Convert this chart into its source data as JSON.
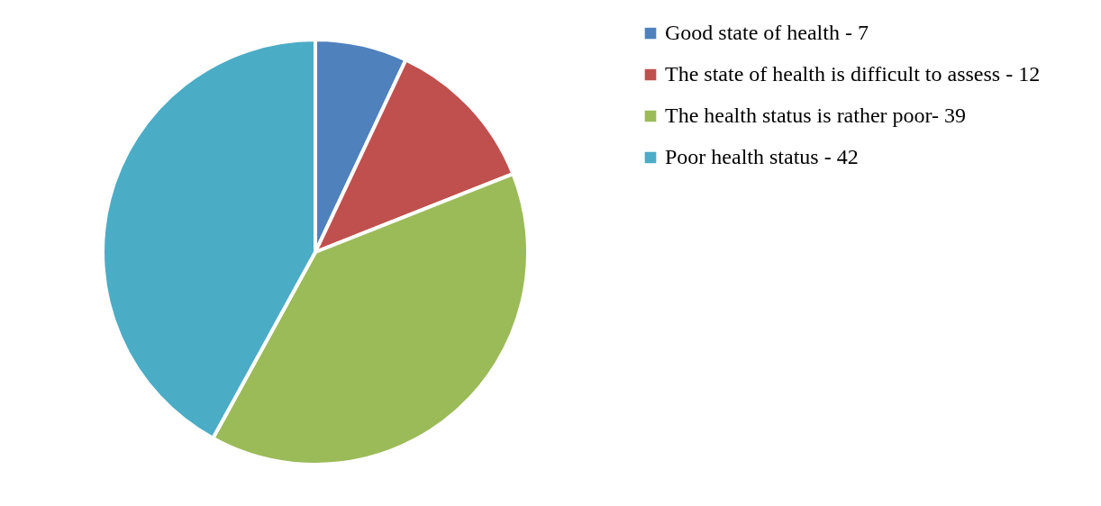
{
  "chart_data": {
    "type": "pie",
    "categories": [
      "Good state of health - 7",
      "The state of health is difficult to assess - 12",
      "The health status is rather poor- 39",
      "Poor health status  - 42"
    ],
    "values": [
      7,
      12,
      39,
      42
    ],
    "colors": [
      "#4f81bd",
      "#c0504d",
      "#9bbb59",
      "#4bacc6"
    ],
    "legend": "right"
  }
}
